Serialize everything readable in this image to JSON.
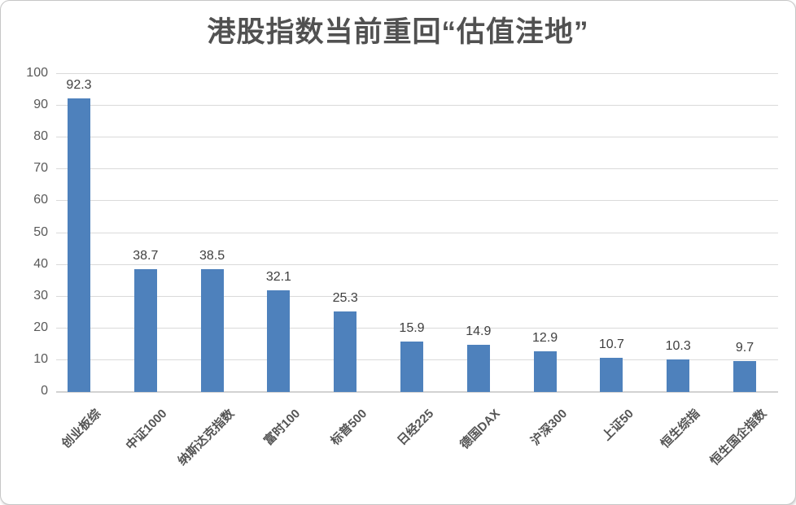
{
  "title": "港股指数当前重回“估值洼地”",
  "chart_data": {
    "type": "bar",
    "title": "港股指数当前重回“估值洼地”",
    "categories": [
      "创业板综",
      "中证1000",
      "纳斯达克指数",
      "富时100",
      "标普500",
      "日经225",
      "德国DAX",
      "沪深300",
      "上证50",
      "恒生综指",
      "恒生国企指数"
    ],
    "values": [
      92.3,
      38.7,
      38.5,
      32.1,
      25.3,
      15.9,
      14.9,
      12.9,
      10.7,
      10.3,
      9.7
    ],
    "data_labels": [
      "92.3",
      "38.7",
      "38.5",
      "32.1",
      "25.3",
      "15.9",
      "14.9",
      "12.9",
      "10.7",
      "10.3",
      "9.7"
    ],
    "xlabel": "",
    "ylabel": "",
    "ylim": [
      0,
      100
    ],
    "yticks": [
      0,
      10,
      20,
      30,
      40,
      50,
      60,
      70,
      80,
      90,
      100
    ],
    "grid": true,
    "legend": "none",
    "x_label_rotation_deg": -45,
    "colors": {
      "bar": "#4E81BC",
      "gridline": "#DADADA",
      "axis_line": "#D2D2D2",
      "tick_label": "#595959",
      "data_label": "#3F3F3F",
      "category_label": "#545454",
      "title": "#515151",
      "card_border": "#C6C6C6",
      "background": "#FFFFFF"
    }
  }
}
